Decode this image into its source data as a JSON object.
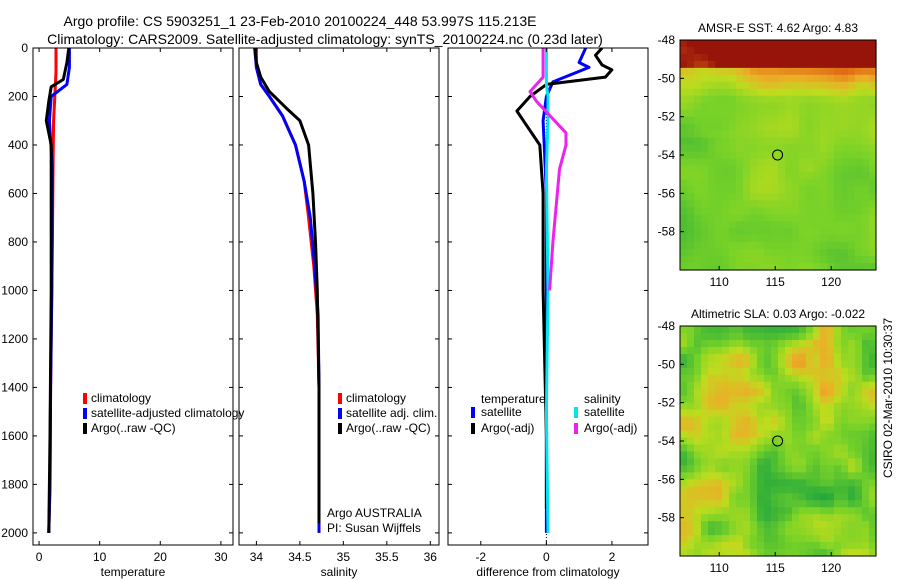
{
  "figure": {
    "title_line1": "Argo profile: CS 5903251_1 23-Feb-2010 20100224_448 53.997S 115.213E",
    "title_line2": "Climatology: CARS2009. Satellite-adjusted climatology: synTS_20100224.nc (0.23d later)",
    "side_label": "CSIRO 02-Mar-2010 10:30:37",
    "colors": {
      "red": "#ff0000",
      "blue": "#0000ff",
      "black": "#000000",
      "cyan": "#00e5ee",
      "magenta": "#ee22ee"
    }
  },
  "chart_data": [
    {
      "id": "temperature",
      "type": "line",
      "xlabel": "temperature",
      "xlim": [
        -1,
        32
      ],
      "ylim": [
        2050,
        0
      ],
      "xticks": [
        0,
        10,
        20,
        30
      ],
      "yticks": [
        0,
        200,
        400,
        600,
        800,
        1000,
        1200,
        1400,
        1600,
        1800,
        2000
      ],
      "legend": {
        "position": "lower-right",
        "entries": [
          "climatology",
          "satellite-adjusted climatology",
          "Argo(..raw -QC)"
        ]
      },
      "series": [
        {
          "name": "climatology",
          "color": "#ff0000",
          "x": [
            2.8,
            2.8,
            2.6,
            2.4,
            2.3,
            2.2,
            2.1,
            1.9,
            1.8,
            1.6
          ],
          "y": [
            0,
            100,
            200,
            300,
            500,
            800,
            1000,
            1400,
            1800,
            2000
          ]
        },
        {
          "name": "satellite-adjusted climatology",
          "color": "#0000ff",
          "x": [
            5.0,
            5.0,
            4.6,
            2.0,
            1.7,
            2.2,
            2.1,
            1.9,
            1.8,
            1.6
          ],
          "y": [
            0,
            80,
            150,
            200,
            300,
            500,
            1000,
            1400,
            1800,
            2000
          ]
        },
        {
          "name": "Argo(..raw -QC)",
          "color": "#000000",
          "x": [
            4.9,
            4.6,
            4.0,
            2.0,
            1.6,
            1.2,
            2.0,
            2.0,
            1.8,
            1.6
          ],
          "y": [
            0,
            60,
            130,
            160,
            220,
            300,
            400,
            1000,
            1600,
            2000
          ]
        }
      ]
    },
    {
      "id": "salinity",
      "type": "line",
      "xlabel": "salinity",
      "xlim": [
        33.8,
        36.1
      ],
      "ylim": [
        2050,
        0
      ],
      "xticks": [
        34,
        34.5,
        35,
        35.5,
        36
      ],
      "xtick_labels": [
        "34",
        "34.5",
        "35",
        "35.5",
        "36"
      ],
      "legend": {
        "position": "lower-right",
        "entries": [
          "climatology",
          "satellite adj. clim.",
          "Argo(..raw -QC)"
        ]
      },
      "annotation": [
        "Argo AUSTRALIA",
        "PI: Susan Wijffels"
      ],
      "series": [
        {
          "name": "climatology",
          "color": "#ff0000",
          "x": [
            34.0,
            34.0,
            34.05,
            34.15,
            34.3,
            34.45,
            34.55,
            34.6,
            34.66,
            34.7,
            34.72,
            34.72,
            34.72
          ],
          "y": [
            0,
            80,
            150,
            200,
            280,
            400,
            550,
            700,
            900,
            1100,
            1400,
            1800,
            2000
          ]
        },
        {
          "name": "satellite adj. clim.",
          "color": "#0000ff",
          "x": [
            33.98,
            34.0,
            34.05,
            34.15,
            34.3,
            34.45,
            34.55,
            34.62,
            34.67,
            34.71,
            34.72,
            34.72,
            34.72
          ],
          "y": [
            0,
            80,
            150,
            200,
            280,
            400,
            550,
            700,
            900,
            1100,
            1400,
            1800,
            2000
          ]
        },
        {
          "name": "Argo(..raw -QC)",
          "color": "#000000",
          "x": [
            33.98,
            34.0,
            34.05,
            34.15,
            34.35,
            34.5,
            34.6,
            34.65,
            34.68,
            34.7,
            34.72,
            34.72,
            34.72
          ],
          "y": [
            0,
            60,
            120,
            180,
            250,
            300,
            400,
            600,
            800,
            1000,
            1400,
            1800,
            1960
          ]
        }
      ]
    },
    {
      "id": "difference",
      "type": "line",
      "xlabel": "difference from climatology",
      "xlim": [
        -3,
        3.1
      ],
      "ylim": [
        2050,
        0
      ],
      "xticks": [
        -2,
        0,
        2
      ],
      "legend": {
        "position": "lower-right",
        "headers": [
          "temperature",
          "salinity"
        ],
        "entries": [
          "satellite",
          "Argo(-adj)",
          "satellite",
          "Argo(-adj)"
        ]
      },
      "series": [
        {
          "name": "temperature satellite",
          "color": "#0000ff",
          "x": [
            1.2,
            1.0,
            1.3,
            0.2,
            0.0,
            -0.1,
            0.0,
            0.0
          ],
          "y": [
            0,
            60,
            80,
            140,
            200,
            300,
            600,
            2000
          ]
        },
        {
          "name": "temperature Argo(-adj)",
          "color": "#000000",
          "x": [
            1.7,
            1.5,
            1.7,
            2.0,
            1.8,
            0.0,
            -0.5,
            -0.9,
            -0.7,
            -0.2,
            -0.1,
            -0.1,
            0.0,
            0.0
          ],
          "y": [
            0,
            30,
            70,
            90,
            120,
            150,
            200,
            260,
            300,
            400,
            600,
            1000,
            1600,
            1900
          ]
        },
        {
          "name": "salinity satellite",
          "color": "#00e5ee",
          "x": [
            0.0,
            0.0,
            0.05,
            0.05,
            0.0,
            0.05,
            0.0,
            0.05
          ],
          "y": [
            0,
            150,
            200,
            300,
            500,
            1000,
            1500,
            2000
          ]
        },
        {
          "name": "salinity Argo(-adj)",
          "color": "#ee22ee",
          "x": [
            -0.1,
            -0.1,
            -0.5,
            -0.3,
            0.6,
            0.6,
            0.4,
            0.2,
            0.1
          ],
          "y": [
            0,
            120,
            180,
            220,
            350,
            400,
            500,
            800,
            1000
          ]
        }
      ]
    },
    {
      "id": "sst_map",
      "type": "heatmap",
      "title": "AMSR-E SST: 4.62 Argo: 4.83",
      "xlim": [
        106.5,
        124
      ],
      "ylim": [
        -60,
        -48
      ],
      "xticks": [
        110,
        115,
        120
      ],
      "yticks": [
        -48,
        -50,
        -52,
        -54,
        -56,
        -58
      ],
      "marker": {
        "lon": 115.213,
        "lat": -53.997
      }
    },
    {
      "id": "sla_map",
      "type": "heatmap",
      "title": "Altimetric SLA: 0.03 Argo: -0.022",
      "xlim": [
        106.5,
        124
      ],
      "ylim": [
        -60,
        -48
      ],
      "xticks": [
        110,
        115,
        120
      ],
      "yticks": [
        -48,
        -50,
        -52,
        -54,
        -56,
        -58
      ],
      "marker": {
        "lon": 115.213,
        "lat": -53.997
      }
    }
  ]
}
